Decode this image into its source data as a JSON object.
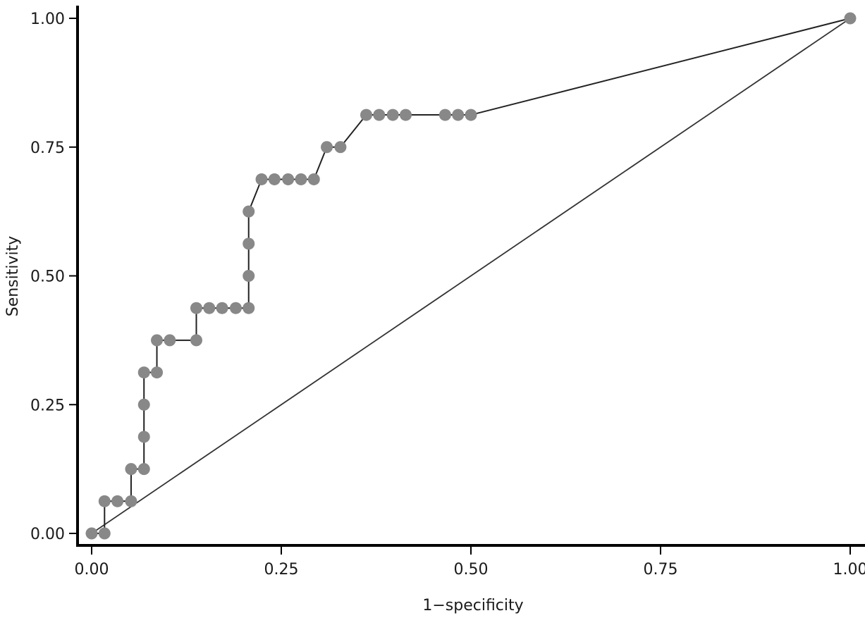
{
  "chart_data": {
    "type": "line",
    "xlabel": "1−specificity",
    "ylabel": "Sensitivity",
    "xlim": [
      0,
      1
    ],
    "ylim": [
      0,
      1
    ],
    "x_ticks": [
      "0.00",
      "0.25",
      "0.50",
      "0.75",
      "1.00"
    ],
    "y_ticks": [
      "0.00",
      "0.25",
      "0.50",
      "0.75",
      "1.00"
    ],
    "x_tick_values": [
      0,
      0.25,
      0.5,
      0.75,
      1
    ],
    "y_tick_values": [
      0,
      0.25,
      0.5,
      0.75,
      1
    ],
    "grid": false,
    "colors": {
      "curve": "#222222",
      "marker": "#888888",
      "reference": "#333333",
      "axis": "#000000"
    },
    "series": [
      {
        "markers": true,
        "x": [
          0.0,
          0.017,
          0.017,
          0.034,
          0.052,
          0.052,
          0.069,
          0.069,
          0.069,
          0.069,
          0.086,
          0.086,
          0.103,
          0.138,
          0.138,
          0.155,
          0.172,
          0.19,
          0.207,
          0.207,
          0.207,
          0.207,
          0.224,
          0.241,
          0.259,
          0.276,
          0.293,
          0.31,
          0.328,
          0.362,
          0.379,
          0.397,
          0.414,
          0.466,
          0.483,
          0.5,
          1.0
        ],
        "y": [
          0.0,
          0.0,
          0.0625,
          0.0625,
          0.0625,
          0.125,
          0.125,
          0.1875,
          0.25,
          0.3125,
          0.3125,
          0.375,
          0.375,
          0.375,
          0.4375,
          0.4375,
          0.4375,
          0.4375,
          0.4375,
          0.5,
          0.5625,
          0.625,
          0.6875,
          0.6875,
          0.6875,
          0.6875,
          0.6875,
          0.75,
          0.75,
          0.8125,
          0.8125,
          0.8125,
          0.8125,
          0.8125,
          0.8125,
          0.8125,
          1.0
        ]
      },
      {
        "markers": false,
        "x": [
          0,
          1
        ],
        "y": [
          0,
          1
        ]
      }
    ]
  }
}
